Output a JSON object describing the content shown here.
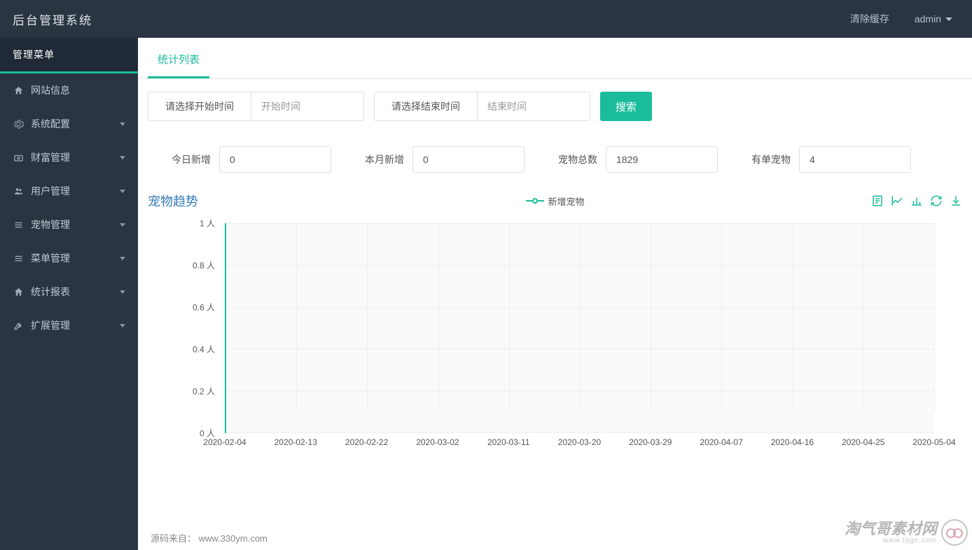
{
  "topbar": {
    "title": "后台管理系统",
    "clear_cache": "清除缓存",
    "user": "admin"
  },
  "sidebar": {
    "header": "管理菜单",
    "items": [
      {
        "icon": "home",
        "label": "网站信息",
        "chev": false
      },
      {
        "icon": "gear",
        "label": "系统配置",
        "chev": true
      },
      {
        "icon": "money",
        "label": "财富管理",
        "chev": true
      },
      {
        "icon": "users",
        "label": "用户管理",
        "chev": true
      },
      {
        "icon": "list",
        "label": "宠物管理",
        "chev": true
      },
      {
        "icon": "list",
        "label": "菜单管理",
        "chev": true
      },
      {
        "icon": "home",
        "label": "统计报表",
        "chev": true
      },
      {
        "icon": "wrench",
        "label": "扩展管理",
        "chev": true
      }
    ]
  },
  "tab": {
    "label": "统计列表"
  },
  "filters": {
    "start_label": "请选择开始时间",
    "start_placeholder": "开始时间",
    "end_label": "请选择结束时间",
    "end_placeholder": "结束时间",
    "search": "搜索"
  },
  "stats": [
    {
      "label": "今日新增",
      "value": "0"
    },
    {
      "label": "本月新增",
      "value": "0"
    },
    {
      "label": "宠物总数",
      "value": "1829"
    },
    {
      "label": "有单宠物",
      "value": "4"
    }
  ],
  "chart": {
    "type": "line",
    "title": "宠物趋势",
    "legend": "新增宠物",
    "series_color": "#1abc9c",
    "background_color": "#fafafa",
    "grid_color": "#eeeeee",
    "text_color": "#555555",
    "y_unit": "人",
    "ylim": [
      0,
      1
    ],
    "ytick_step": 0.2,
    "yticks": [
      "0 人",
      "0.2 人",
      "0.4 人",
      "0.6 人",
      "0.8 人",
      "1 人"
    ],
    "xticks": [
      "2020-02-04",
      "2020-02-13",
      "2020-02-22",
      "2020-03-02",
      "2020-03-11",
      "2020-03-20",
      "2020-03-29",
      "2020-04-07",
      "2020-04-16",
      "2020-04-25",
      "2020-05-04"
    ],
    "data": {
      "x": "2020-02-04",
      "y_from": 1,
      "y_to": 0
    },
    "label_fontsize": 12,
    "title_fontsize": 18
  },
  "footer": {
    "source_label": "源码来自：",
    "source": "www.330ym.com"
  },
  "watermark": {
    "main": "淘气哥素材网",
    "sub": "www.tqge.com"
  },
  "colors": {
    "accent": "#1abc9c",
    "sidebar_bg": "#2a3542",
    "sidebar_header_bg": "#1f2a36",
    "link": "#337ab7"
  }
}
